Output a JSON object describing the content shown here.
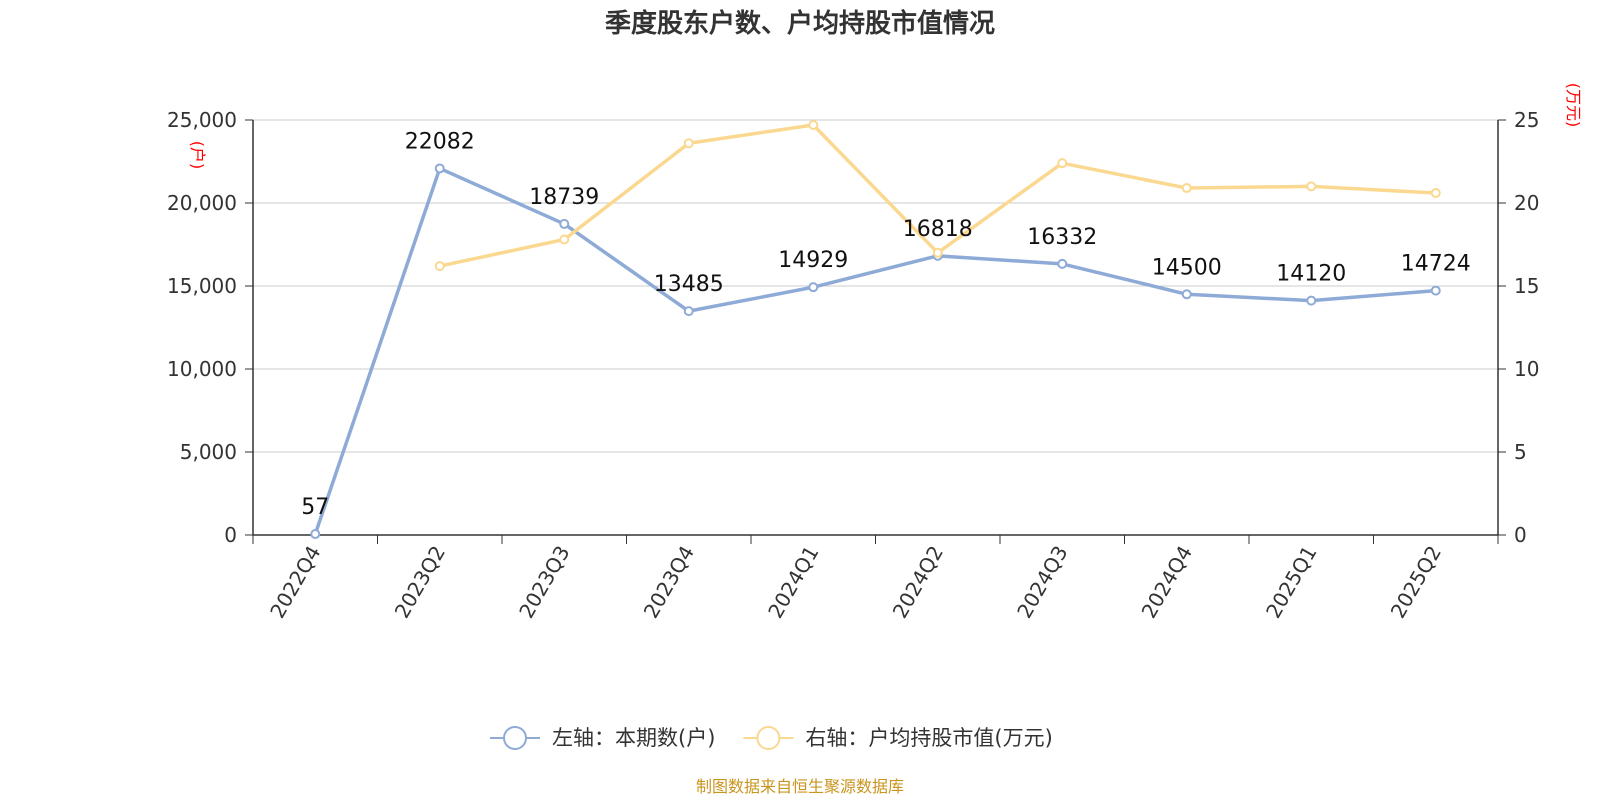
{
  "chart_data": {
    "type": "line",
    "title": "季度股东户数、户均持股市值情况",
    "categories": [
      "2022Q4",
      "2023Q2",
      "2023Q3",
      "2023Q4",
      "2024Q1",
      "2024Q2",
      "2024Q3",
      "2024Q4",
      "2025Q1",
      "2025Q2"
    ],
    "left_axis": {
      "unit": "(户)",
      "range": [
        0,
        25000
      ],
      "ticks": [
        "0",
        "5,000",
        "10,000",
        "15,000",
        "20,000",
        "25,000"
      ],
      "tick_values": [
        0,
        5000,
        10000,
        15000,
        20000,
        25000
      ]
    },
    "right_axis": {
      "unit": "(万元)",
      "range": [
        0,
        25
      ],
      "ticks": [
        "0",
        "5",
        "10",
        "15",
        "20",
        "25"
      ],
      "tick_values": [
        0,
        5,
        10,
        15,
        20,
        25
      ]
    },
    "grid": true,
    "legend_position": "bottom",
    "series": [
      {
        "name": "左轴：本期数(户)",
        "axis": "left",
        "color": "#8eaad6",
        "values": [
          57,
          22082,
          18739,
          13485,
          14929,
          16818,
          16332,
          14500,
          14120,
          14724
        ],
        "labels": [
          "57",
          "22082",
          "18739",
          "13485",
          "14929",
          "16818",
          "16332",
          "14500",
          "14120",
          "14724"
        ]
      },
      {
        "name": "右轴：户均持股市值(万元)",
        "axis": "right",
        "color": "#fad890",
        "values": [
          null,
          16.2,
          17.8,
          23.6,
          24.7,
          17.0,
          22.4,
          20.9,
          21.0,
          20.6
        ]
      }
    ],
    "source": "制图数据来自恒生聚源数据库"
  }
}
